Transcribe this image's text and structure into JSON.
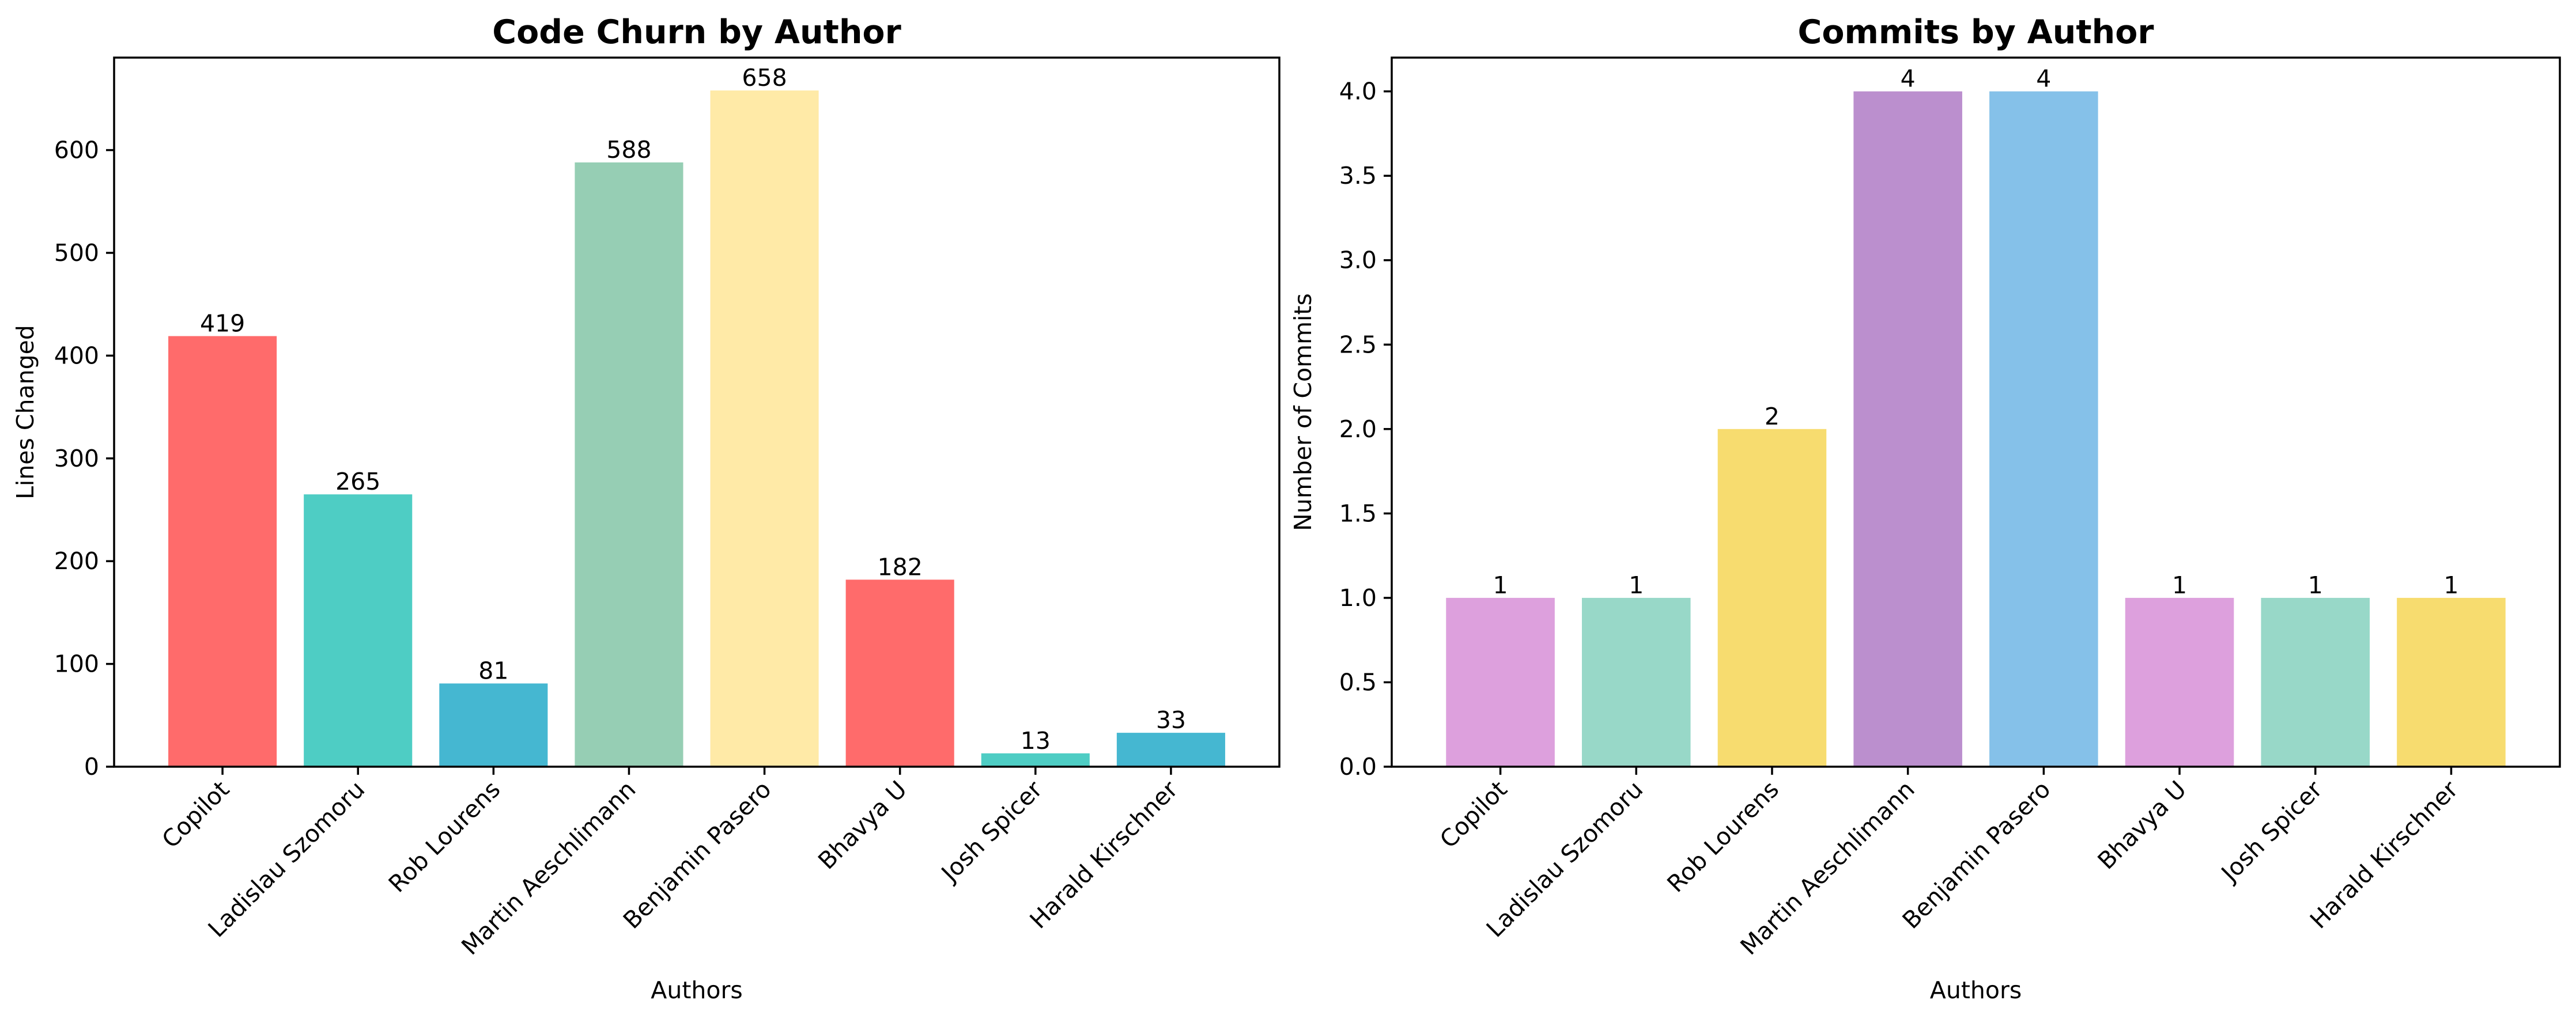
{
  "chart_data": [
    {
      "type": "bar",
      "title": "Code Churn by Author",
      "xlabel": "Authors",
      "ylabel": "Lines Changed",
      "categories": [
        "Copilot",
        "Ladislau Szomoru",
        "Rob Lourens",
        "Martin Aeschlimann",
        "Benjamin Pasero",
        "Bhavya U",
        "Josh Spicer",
        "Harald Kirschner"
      ],
      "values": [
        419,
        265,
        81,
        588,
        658,
        182,
        13,
        33
      ],
      "value_labels": [
        "419",
        "265",
        "81",
        "588",
        "658",
        "182",
        "13",
        "33"
      ],
      "colors": [
        "#FF6B6B",
        "#4ECDC4",
        "#45B7D1",
        "#96CEB4",
        "#FFEAA7",
        "#FF6B6B",
        "#4ECDC4",
        "#45B7D1"
      ],
      "ylim": [
        0,
        690
      ],
      "yticks": [
        0,
        100,
        200,
        300,
        400,
        500,
        600
      ],
      "ytick_labels": [
        "0",
        "100",
        "200",
        "300",
        "400",
        "500",
        "600"
      ],
      "grid": false,
      "legend": false
    },
    {
      "type": "bar",
      "title": "Commits by Author",
      "xlabel": "Authors",
      "ylabel": "Number of Commits",
      "categories": [
        "Copilot",
        "Ladislau Szomoru",
        "Rob Lourens",
        "Martin Aeschlimann",
        "Benjamin Pasero",
        "Bhavya U",
        "Josh Spicer",
        "Harald Kirschner"
      ],
      "values": [
        1,
        1,
        2,
        4,
        4,
        1,
        1,
        1
      ],
      "value_labels": [
        "1",
        "1",
        "2",
        "4",
        "4",
        "1",
        "1",
        "1"
      ],
      "colors": [
        "#DDA0DD",
        "#98D8C8",
        "#F7DC6F",
        "#BB8FCE",
        "#85C1E9",
        "#DDA0DD",
        "#98D8C8",
        "#F7DC6F"
      ],
      "ylim": [
        0,
        4.2
      ],
      "yticks": [
        0,
        0.5,
        1,
        1.5,
        2,
        2.5,
        3,
        3.5,
        4
      ],
      "ytick_labels": [
        "0.0",
        "0.5",
        "1.0",
        "1.5",
        "2.0",
        "2.5",
        "3.0",
        "3.5",
        "4.0"
      ],
      "grid": false,
      "legend": false
    }
  ]
}
